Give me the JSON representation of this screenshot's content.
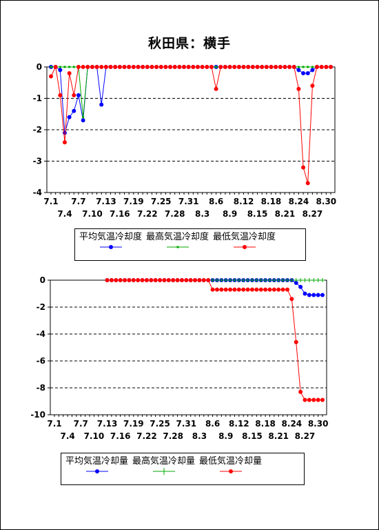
{
  "title": "秋田県：横手",
  "chart_data": [
    {
      "type": "line",
      "ylim": [
        -4,
        0
      ],
      "yticks": [
        0,
        -1,
        -2,
        -3,
        -4
      ],
      "grid": "horizontal-dashed",
      "xticks_top": [
        "7.1",
        "7.7",
        "7.13",
        "7.19",
        "7.25",
        "7.31",
        "8.6",
        "8.12",
        "8.18",
        "8.24",
        "8.30"
      ],
      "xticks_bottom": [
        "7.4",
        "7.10",
        "7.16",
        "7.22",
        "7.28",
        "8.3",
        "8.9",
        "8.15",
        "8.21",
        "8.27"
      ],
      "series": [
        {
          "name": "平均気温冷却度",
          "color": "#0000ff",
          "marker": "circle",
          "values": [
            0,
            0,
            -0.1,
            -2.1,
            -1.6,
            -1.4,
            -0.9,
            -1.7,
            0,
            0,
            0,
            -1.2,
            0,
            0,
            0,
            0,
            0,
            0,
            0,
            0,
            0,
            0,
            0,
            0,
            0,
            0,
            0,
            0,
            0,
            0,
            0,
            0,
            0,
            0,
            0,
            0,
            0,
            0,
            0,
            0,
            0,
            0,
            0,
            0,
            0,
            0,
            0,
            0,
            0,
            0,
            0,
            0,
            0,
            0,
            -0.1,
            -0.2,
            -0.2,
            -0.1,
            0,
            0,
            0,
            0
          ]
        },
        {
          "name": "最高気温冷却度",
          "color": "#00aa00",
          "marker": "square",
          "values": [
            0,
            0,
            0,
            0,
            0,
            0,
            0,
            -1.6,
            0,
            0,
            0,
            0,
            0,
            0,
            0,
            0,
            0,
            0,
            0,
            0,
            0,
            0,
            0,
            0,
            0,
            0,
            0,
            0,
            0,
            0,
            0,
            0,
            0,
            0,
            0,
            0,
            0,
            0,
            0,
            0,
            0,
            0,
            0,
            0,
            0,
            0,
            0,
            0,
            0,
            0,
            0,
            0,
            0,
            0,
            0,
            0,
            0,
            0,
            0,
            0,
            0,
            0
          ]
        },
        {
          "name": "最低気温冷却度",
          "color": "#ff0000",
          "marker": "circle",
          "values": [
            -0.3,
            0,
            -0.9,
            -2.4,
            -0.2,
            -0.9,
            0,
            0,
            0,
            0,
            0,
            0,
            0,
            0,
            0,
            0,
            0,
            0,
            0,
            0,
            0,
            0,
            0,
            0,
            0,
            0,
            0,
            0,
            0,
            0,
            0,
            0,
            0,
            0,
            0,
            0,
            -0.7,
            0,
            0,
            0,
            0,
            0,
            0,
            0,
            0,
            0,
            0,
            0,
            0,
            0,
            0,
            0,
            0,
            0,
            -0.7,
            -3.2,
            -3.7,
            -0.6,
            0,
            0,
            0,
            0
          ]
        }
      ]
    },
    {
      "type": "line",
      "ylim": [
        -10,
        0
      ],
      "yticks": [
        0,
        -2,
        -4,
        -6,
        -8,
        -10
      ],
      "grid": "horizontal-dashed",
      "xticks_top": [
        "7.1",
        "7.7",
        "7.13",
        "7.19",
        "7.25",
        "7.31",
        "8.6",
        "8.12",
        "8.18",
        "8.24",
        "8.30"
      ],
      "xticks_bottom": [
        "7.4",
        "7.10",
        "7.16",
        "7.22",
        "7.28",
        "8.3",
        "8.9",
        "8.15",
        "8.21",
        "8.27"
      ],
      "series": [
        {
          "name": "平均気温冷却量",
          "color": "#0000ff",
          "marker": "circle",
          "values": [
            null,
            null,
            null,
            null,
            null,
            null,
            null,
            null,
            null,
            null,
            null,
            null,
            0,
            0,
            0,
            0,
            0,
            0,
            0,
            0,
            0,
            0,
            0,
            0,
            0,
            0,
            0,
            0,
            0,
            0,
            0,
            0,
            0,
            0,
            0,
            0,
            0,
            0,
            0,
            0,
            0,
            0,
            0,
            0,
            0,
            0,
            0,
            0,
            0,
            0,
            0,
            0,
            0,
            0,
            0,
            -0.2,
            -0.5,
            -1.0,
            -1.1,
            -1.1,
            -1.1,
            -1.1
          ]
        },
        {
          "name": "最高気温冷却量",
          "color": "#00aa00",
          "marker": "cross",
          "values": [
            null,
            null,
            null,
            null,
            null,
            null,
            null,
            null,
            null,
            null,
            null,
            null,
            0,
            0,
            0,
            0,
            0,
            0,
            0,
            0,
            0,
            0,
            0,
            0,
            0,
            0,
            0,
            0,
            0,
            0,
            0,
            0,
            0,
            0,
            0,
            0,
            0,
            0,
            0,
            0,
            0,
            0,
            0,
            0,
            0,
            0,
            0,
            0,
            0,
            0,
            0,
            0,
            0,
            0,
            0,
            0,
            0,
            0,
            0,
            0,
            0,
            0
          ]
        },
        {
          "name": "最低気温冷却量",
          "color": "#ff0000",
          "marker": "circle",
          "values": [
            null,
            null,
            null,
            null,
            null,
            null,
            null,
            null,
            null,
            null,
            null,
            null,
            0,
            0,
            0,
            0,
            0,
            0,
            0,
            0,
            0,
            0,
            0,
            0,
            0,
            0,
            0,
            0,
            0,
            0,
            0,
            0,
            0,
            0,
            0,
            0,
            -0.7,
            -0.7,
            -0.7,
            -0.7,
            -0.7,
            -0.7,
            -0.7,
            -0.7,
            -0.7,
            -0.7,
            -0.7,
            -0.7,
            -0.7,
            -0.7,
            -0.7,
            -0.7,
            -0.7,
            -0.7,
            -1.4,
            -4.6,
            -8.3,
            -8.9,
            -8.9,
            -8.9,
            -8.9,
            -8.9
          ]
        }
      ]
    }
  ]
}
